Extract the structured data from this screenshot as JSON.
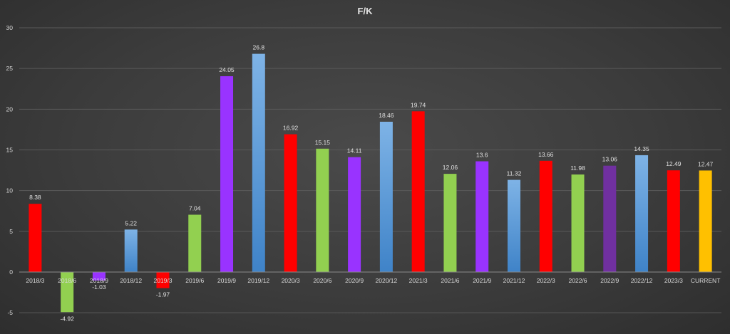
{
  "chart_data": {
    "type": "bar",
    "title": "F/K",
    "xlabel": "",
    "ylabel": "",
    "ylim": [
      -5,
      30
    ],
    "yticks": [
      -5,
      0,
      5,
      10,
      15,
      20,
      25,
      30
    ],
    "grid": true,
    "legend": "none",
    "categories": [
      "2018/3",
      "2018/6",
      "2018/9",
      "2018/12",
      "2019/3",
      "2019/6",
      "2019/9",
      "2019/12",
      "2020/3",
      "2020/6",
      "2020/9",
      "2020/12",
      "2021/3",
      "2021/6",
      "2021/9",
      "2021/12",
      "2022/3",
      "2022/6",
      "2022/9",
      "2022/12",
      "2023/3",
      "CURRENT"
    ],
    "values": [
      8.38,
      -4.92,
      -1.03,
      5.22,
      -1.97,
      7.04,
      24.05,
      26.8,
      16.92,
      15.15,
      14.11,
      18.46,
      19.74,
      12.06,
      13.6,
      11.32,
      13.66,
      11.98,
      13.06,
      14.35,
      12.49,
      12.47
    ],
    "data_labels": [
      "8.38",
      "-4.92",
      "-1.03",
      "5.22",
      "-1.97",
      "7.04",
      "24.05",
      "26.8",
      "16.92",
      "15.15",
      "14.11",
      "18.46",
      "19.74",
      "12.06",
      "13.6",
      "11.32",
      "13.66",
      "11.98",
      "13.06",
      "14.35",
      "12.49",
      "12.47"
    ],
    "bar_colors": [
      "#ff0000",
      "#92d050",
      "#9933ff",
      "#5b9bd5",
      "#ff0000",
      "#92d050",
      "#9933ff",
      "#5b9bd5",
      "#ff0000",
      "#92d050",
      "#9933ff",
      "#5b9bd5",
      "#ff0000",
      "#92d050",
      "#9933ff",
      "#5b9bd5",
      "#ff0000",
      "#92d050",
      "#7030a0",
      "#5b9bd5",
      "#ff0000",
      "#ffc000"
    ]
  }
}
